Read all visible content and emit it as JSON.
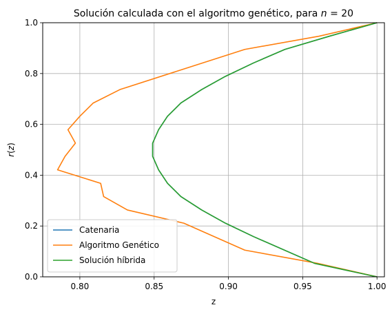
{
  "chart_data": {
    "type": "line",
    "title": "Solución calculada con el algoritmo genético, para ",
    "title_math": "n = 20",
    "xlabel": "z",
    "ylabel": "r(z)",
    "xlim": [
      0.775,
      1.005
    ],
    "ylim": [
      0.0,
      1.0
    ],
    "xticks": [
      0.8,
      0.85,
      0.9,
      0.95,
      1.0
    ],
    "xtick_labels": [
      "0.80",
      "0.85",
      "0.90",
      "0.95",
      "1.00"
    ],
    "yticks": [
      0.0,
      0.2,
      0.4,
      0.6,
      0.8,
      1.0
    ],
    "ytick_labels": [
      "0.0",
      "0.2",
      "0.4",
      "0.6",
      "0.8",
      "1.0"
    ],
    "grid": true,
    "legend_position": "lower-left",
    "series": [
      {
        "name": "Catenaria",
        "color": "#1f77b4",
        "points": [
          [
            1.0,
            0.0
          ],
          [
            0.958,
            0.053
          ],
          [
            0.917,
            0.158
          ],
          [
            0.898,
            0.211
          ],
          [
            0.882,
            0.263
          ],
          [
            0.868,
            0.316
          ],
          [
            0.859,
            0.368
          ],
          [
            0.853,
            0.421
          ],
          [
            0.849,
            0.474
          ],
          [
            0.849,
            0.526
          ],
          [
            0.853,
            0.579
          ],
          [
            0.859,
            0.632
          ],
          [
            0.868,
            0.684
          ],
          [
            0.882,
            0.737
          ],
          [
            0.898,
            0.789
          ],
          [
            0.917,
            0.842
          ],
          [
            0.938,
            0.895
          ],
          [
            0.968,
            0.947
          ],
          [
            1.0,
            1.0
          ]
        ]
      },
      {
        "name": "Algoritmo Genético",
        "color": "#ff7f0e",
        "points": [
          [
            1.0,
            0.0
          ],
          [
            0.96,
            0.053
          ],
          [
            0.911,
            0.105
          ],
          [
            0.87,
            0.211
          ],
          [
            0.832,
            0.263
          ],
          [
            0.816,
            0.316
          ],
          [
            0.814,
            0.368
          ],
          [
            0.785,
            0.421
          ],
          [
            0.79,
            0.474
          ],
          [
            0.797,
            0.526
          ],
          [
            0.792,
            0.579
          ],
          [
            0.8,
            0.632
          ],
          [
            0.809,
            0.684
          ],
          [
            0.827,
            0.737
          ],
          [
            0.869,
            0.816
          ],
          [
            0.911,
            0.895
          ],
          [
            0.961,
            0.947
          ],
          [
            1.0,
            1.0
          ]
        ]
      },
      {
        "name": "Solución híbrida",
        "color": "#2ca02c",
        "points": [
          [
            1.0,
            0.0
          ],
          [
            0.958,
            0.053
          ],
          [
            0.917,
            0.158
          ],
          [
            0.898,
            0.211
          ],
          [
            0.882,
            0.263
          ],
          [
            0.868,
            0.316
          ],
          [
            0.859,
            0.368
          ],
          [
            0.853,
            0.421
          ],
          [
            0.849,
            0.474
          ],
          [
            0.849,
            0.526
          ],
          [
            0.853,
            0.579
          ],
          [
            0.859,
            0.632
          ],
          [
            0.868,
            0.684
          ],
          [
            0.882,
            0.737
          ],
          [
            0.898,
            0.789
          ],
          [
            0.917,
            0.842
          ],
          [
            0.938,
            0.895
          ],
          [
            0.968,
            0.947
          ],
          [
            1.0,
            1.0
          ]
        ]
      }
    ]
  }
}
